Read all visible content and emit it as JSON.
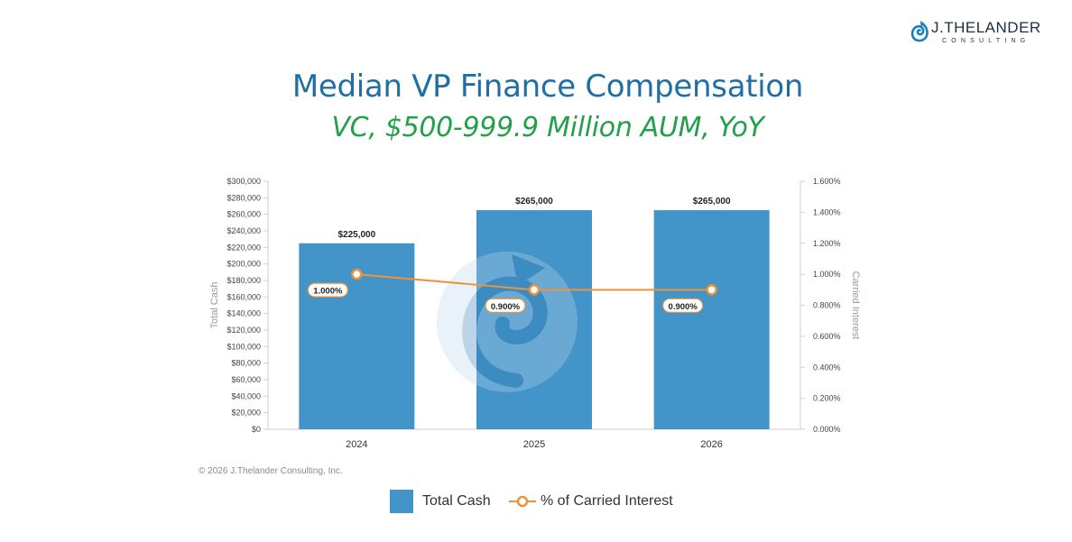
{
  "brand": {
    "name": "J.THELANDER",
    "sub": "CONSULTING",
    "color": "#1f2f3f",
    "accent": "#1a7fc0"
  },
  "header": {
    "title": "Median VP Finance Compensation",
    "subtitle": "VC, $500-999.9 Million AUM, YoY"
  },
  "colors": {
    "bar": "#4394c8",
    "line": "#f0923a",
    "title": "#1f6fa6",
    "subtitle": "#22a04a"
  },
  "chart_data": {
    "type": "bar",
    "categories": [
      "2024",
      "2025",
      "2026"
    ],
    "series": [
      {
        "name": "Total Cash",
        "type": "bar",
        "axis": "left",
        "values": [
          225000,
          265000,
          265000
        ],
        "data_labels": [
          "$225,000",
          "$265,000",
          "$265,000"
        ]
      },
      {
        "name": "% of Carried Interest",
        "type": "line",
        "axis": "right",
        "values": [
          1.0,
          0.9,
          0.9
        ],
        "data_labels": [
          "1.000%",
          "0.900%",
          "0.900%"
        ]
      }
    ],
    "ylabel": "Total Cash",
    "ylabel_right": "Carried Interest",
    "ylim": [
      0,
      300000
    ],
    "ylim_right": [
      0,
      1.6
    ],
    "y_ticks": [
      "$0",
      "$20,000",
      "$40,000",
      "$60,000",
      "$80,000",
      "$100,000",
      "$120,000",
      "$140,000",
      "$160,000",
      "$180,000",
      "$200,000",
      "$220,000",
      "$240,000",
      "$260,000",
      "$280,000",
      "$300,000"
    ],
    "y_ticks_right": [
      "0.000%",
      "0.200%",
      "0.400%",
      "0.600%",
      "0.800%",
      "1.000%",
      "1.200%",
      "1.400%",
      "1.600%"
    ],
    "grid": false,
    "legend_position": "bottom"
  },
  "footer": {
    "copyright": "© 2026 J.Thelander Consulting, Inc."
  },
  "legend": {
    "bar_label": "Total Cash",
    "line_label": "% of Carried Interest"
  }
}
